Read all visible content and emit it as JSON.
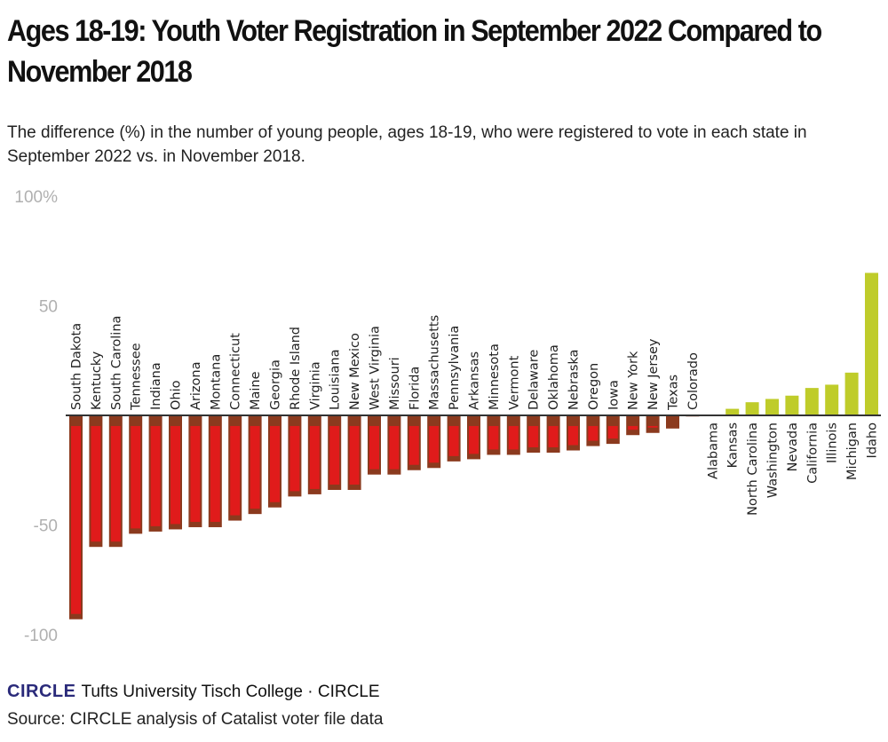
{
  "title": "Ages 18-19: Youth Voter Registration in September 2022 Compared to November 2018",
  "subtitle": "The difference (%) in the number of young people, ages 18-19, who were registered to vote in each state in September 2022 vs. in November 2018.",
  "footer": {
    "logo": "CIRCLE",
    "org": "Tufts University Tisch College · CIRCLE",
    "source": "Source: CIRCLE analysis of Catalist voter file data"
  },
  "chart_data": {
    "type": "bar",
    "title": "",
    "xlabel": "",
    "ylabel": "",
    "ylim": [
      -100,
      100
    ],
    "yticks": [
      {
        "value": 100,
        "label": "100%"
      },
      {
        "value": 50,
        "label": "50"
      },
      {
        "value": -50,
        "label": "-50"
      },
      {
        "value": -100,
        "label": "-100"
      }
    ],
    "grid": false,
    "colors": {
      "negative": "#e01b1b",
      "negative_cap": "#8b3a1e",
      "positive": "#bfcc2a",
      "axis": "#333333",
      "tick_label": "#b0b0b0"
    },
    "categories": [
      "South Dakota",
      "Kentucky",
      "South Carolina",
      "Tennessee",
      "Indiana",
      "Ohio",
      "Arizona",
      "Montana",
      "Connecticut",
      "Maine",
      "Georgia",
      "Rhode Island",
      "Virginia",
      "Louisiana",
      "New Mexico",
      "West Virginia",
      "Missouri",
      "Florida",
      "Massachusetts",
      "Pennsylvania",
      "Arkansas",
      "Minnesota",
      "Vermont",
      "Delaware",
      "Oklahoma",
      "Nebraska",
      "Oregon",
      "Iowa",
      "New York",
      "New Jersey",
      "Texas",
      "Colorado",
      "Alabama",
      "Kansas",
      "North Carolina",
      "Washington",
      "Nevada",
      "California",
      "Illinois",
      "Michigan",
      "Idaho"
    ],
    "values": [
      -93,
      -60,
      -60,
      -54,
      -53,
      -52,
      -51,
      -51,
      -48,
      -45,
      -42,
      -37,
      -36,
      -34,
      -34,
      -27,
      -27,
      -25,
      -24,
      -21,
      -20,
      -18,
      -18,
      -17,
      -17,
      -16,
      -14,
      -13,
      -9,
      -8,
      -6,
      -0.5,
      0,
      3,
      6,
      7.5,
      9,
      12.5,
      14,
      19.5,
      65
    ]
  }
}
